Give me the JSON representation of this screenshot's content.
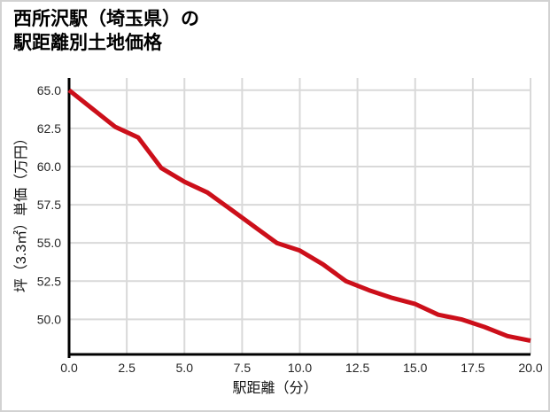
{
  "title": {
    "line1": "西所沢駅（埼玉県）の",
    "line2": "駅距離別土地価格"
  },
  "chart_data": {
    "type": "line",
    "title": "西所沢駅（埼玉県）の駅距離別土地価格",
    "xlabel": "駅距離（分）",
    "ylabel": "坪（3.3㎡）単価（万円）",
    "x": [
      0,
      1,
      2,
      3,
      4,
      5,
      6,
      7,
      8,
      9,
      10,
      11,
      12,
      13,
      14,
      15,
      16,
      17,
      18,
      19,
      20
    ],
    "y": [
      65.0,
      63.8,
      62.6,
      61.9,
      59.9,
      59.0,
      58.3,
      57.2,
      56.1,
      55.0,
      54.5,
      53.6,
      52.5,
      51.9,
      51.4,
      51.0,
      50.3,
      50.0,
      49.5,
      48.9,
      48.6
    ],
    "xticks": [
      0.0,
      2.5,
      5.0,
      7.5,
      10.0,
      12.5,
      15.0,
      17.5,
      20.0
    ],
    "yticks": [
      65.0,
      62.5,
      60.0,
      57.5,
      55.0,
      52.5,
      50.0
    ],
    "xlim": [
      0,
      20
    ],
    "ylim": [
      47.7,
      65.8
    ],
    "grid": true,
    "legend": false,
    "line_color": "#cc0f1a",
    "grid_color": "#d9d9d9",
    "spine_color": "#000000",
    "tick_label_color": "#262626"
  }
}
